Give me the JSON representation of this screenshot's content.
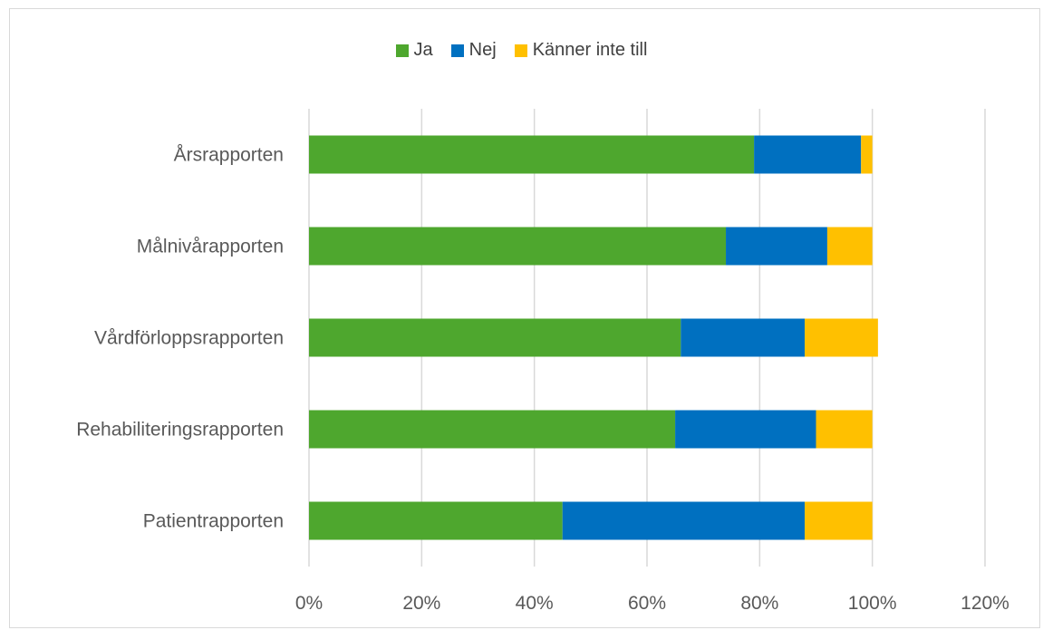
{
  "chart_data": {
    "type": "bar",
    "orientation": "horizontal",
    "stacked": true,
    "categories": [
      "Årsrapporten",
      "Målnivårapporten",
      "Vårdförloppsrapporten",
      "Rehabiliteringsrapporten",
      "Patientrapporten"
    ],
    "series": [
      {
        "name": "Ja",
        "color": "#4ea72e",
        "values": [
          79,
          74,
          66,
          65,
          45
        ]
      },
      {
        "name": "Nej",
        "color": "#0070c0",
        "values": [
          19,
          18,
          22,
          25,
          43
        ]
      },
      {
        "name": "Känner inte till",
        "color": "#ffc000",
        "values": [
          2,
          8,
          13,
          10,
          12
        ]
      }
    ],
    "xlim": [
      0,
      120
    ],
    "xticks": [
      "0%",
      "20%",
      "40%",
      "60%",
      "80%",
      "100%",
      "120%"
    ],
    "grid": true,
    "legend_position": "top",
    "title": "",
    "xlabel": "",
    "ylabel": ""
  }
}
